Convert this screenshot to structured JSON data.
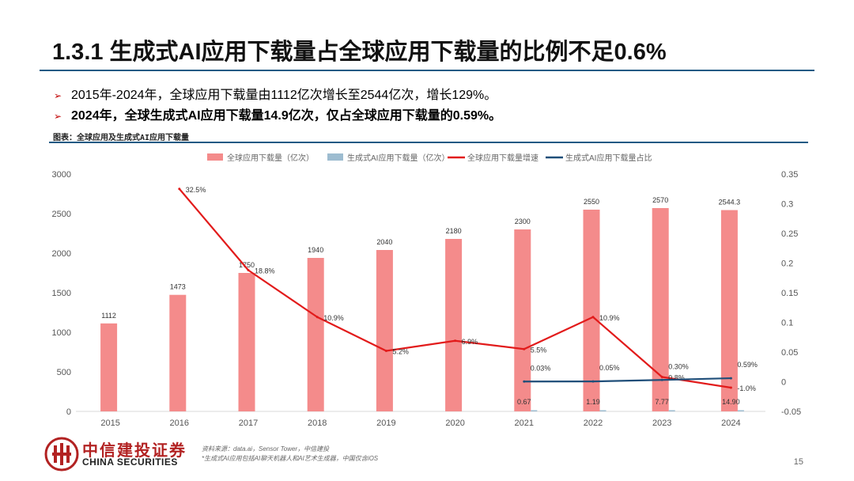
{
  "title": "1.3.1 生成式AI应用下载量占全球应用下载量的比例不足0.6%",
  "bullets": [
    "2015年-2024年，全球应用下载量由1112亿次增长至2544亿次，增长129%。",
    "2024年，全球生成式AI应用下载量14.9亿次，仅占全球应用下载量的0.59%。"
  ],
  "figure_caption": "图表：全球应用及生成式AI应用下载量",
  "source_lines": [
    "资料来源：data.ai，Sensor Tower，中信建投",
    "*生成式AI应用包括AI聊天机器人和AI艺术生成器，中国仅含iOS"
  ],
  "logo": {
    "name_cn": "中信建投证券",
    "name_en": "CHINA SECURITIES"
  },
  "page_number": "15",
  "colors": {
    "accent_blue": "#1d5a84",
    "bar_total": "#f48b8b",
    "bar_ai": "#9dbcd0",
    "line_growth": "#e21b1b",
    "line_share": "#1f4e79",
    "brand_red": "#b22222"
  },
  "chart_data": {
    "type": "bar",
    "categories": [
      "2015",
      "2016",
      "2017",
      "2018",
      "2019",
      "2020",
      "2021",
      "2022",
      "2023",
      "2024"
    ],
    "legend": [
      "全球应用下载量（亿次）",
      "生成式AI应用下载量（亿次）",
      "全球应用下载量增速",
      "生成式AI应用下载量占比"
    ],
    "legend_position": "top-center",
    "grid": false,
    "y_left": {
      "min": 0,
      "max": 3000,
      "ticks": [
        "0",
        "500",
        "1000",
        "1500",
        "2000",
        "2500",
        "3000"
      ]
    },
    "y_right": {
      "min": -0.05,
      "max": 0.35,
      "ticks": [
        "-0.05",
        "0",
        "0.05",
        "0.1",
        "0.15",
        "0.2",
        "0.25",
        "0.3",
        "0.35"
      ]
    },
    "series": [
      {
        "name": "全球应用下载量（亿次）",
        "kind": "bar",
        "axis": "left",
        "values": [
          1112,
          1473,
          1750,
          1940,
          2040,
          2180,
          2300,
          2550,
          2570,
          2544.3
        ],
        "labels": [
          "1112",
          "1473",
          "1750",
          "1940",
          "2040",
          "2180",
          "2300",
          "2550",
          "2570",
          "2544.3"
        ]
      },
      {
        "name": "生成式AI应用下载量（亿次）",
        "kind": "bar",
        "axis": "left",
        "values": [
          null,
          null,
          null,
          null,
          null,
          null,
          0.67,
          1.19,
          7.77,
          14.9
        ],
        "labels": [
          "",
          "",
          "",
          "",
          "",
          "",
          "0.67",
          "1.19",
          "7.77",
          "14.90"
        ]
      },
      {
        "name": "全球应用下载量增速",
        "kind": "line",
        "axis": "right",
        "values": [
          null,
          0.325,
          0.188,
          0.109,
          0.052,
          0.069,
          0.055,
          0.109,
          0.008,
          -0.01
        ],
        "labels": [
          "",
          "32.5%",
          "18.8%",
          "10.9%",
          "5.2%",
          "6.9%",
          "5.5%",
          "10.9%",
          "0.8%",
          "-1.0%"
        ]
      },
      {
        "name": "生成式AI应用下载量占比",
        "kind": "line",
        "axis": "right",
        "values": [
          null,
          null,
          null,
          null,
          null,
          null,
          0.0003,
          0.0005,
          0.003,
          0.0059
        ],
        "labels": [
          "",
          "",
          "",
          "",
          "",
          "",
          "0.03%",
          "0.05%",
          "0.30%",
          "0.59%"
        ]
      }
    ]
  }
}
